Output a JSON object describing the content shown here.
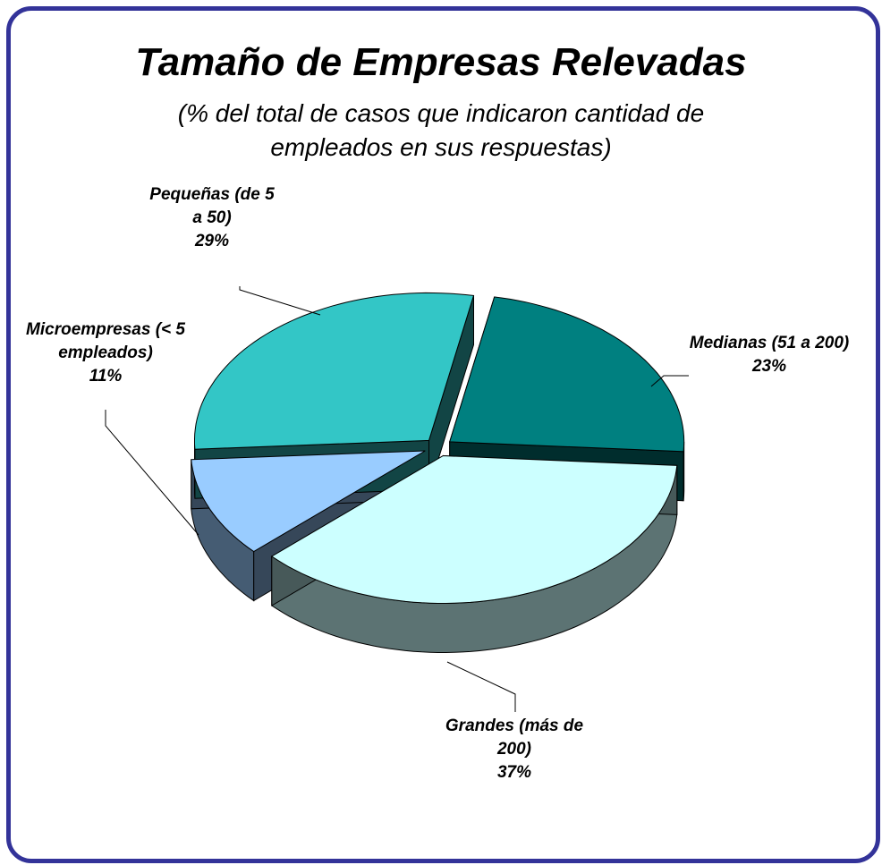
{
  "chart_data": {
    "type": "pie",
    "title": "Tamaño de Empresas Relevadas",
    "subtitle": "(% del total de casos que indicaron cantidad de empleados en sus respuestas)",
    "categories": [
      "Microempresas (< 5 empleados)",
      "Pequeñas (de 5 a 50)",
      "Medianas (51 a 200)",
      "Grandes (más de 200)"
    ],
    "values": [
      11,
      29,
      23,
      37
    ],
    "value_labels": [
      "11%",
      "29%",
      "23%",
      "37%"
    ],
    "colors": [
      "#99ccff",
      "#33c6c6",
      "#008080",
      "#ccffff"
    ]
  }
}
